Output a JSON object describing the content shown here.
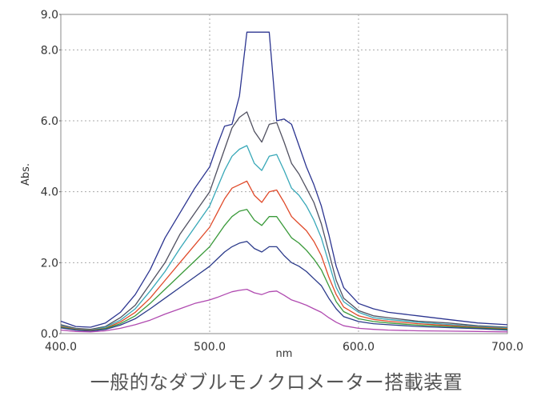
{
  "caption": "一般的なダブルモノクロメーター搭載装置",
  "chart_data": {
    "type": "line",
    "xlabel": "nm",
    "ylabel": "Abs.",
    "xlim": [
      400,
      700
    ],
    "ylim": [
      0,
      9
    ],
    "grid": true,
    "x_ticks": [
      "400.0",
      "500.0",
      "600.0",
      "700.0"
    ],
    "y_ticks": [
      "0.0",
      "2.0",
      "4.0",
      "6.0",
      "8.0",
      "9.0"
    ],
    "x_tick_values": [
      400,
      500,
      600,
      700
    ],
    "y_tick_values": [
      0,
      2,
      4,
      6,
      8,
      9
    ],
    "x": [
      400,
      410,
      420,
      430,
      440,
      450,
      460,
      470,
      480,
      490,
      500,
      505,
      510,
      515,
      520,
      525,
      530,
      535,
      540,
      545,
      550,
      555,
      560,
      565,
      570,
      575,
      580,
      585,
      590,
      600,
      610,
      620,
      640,
      660,
      680,
      700
    ],
    "series": [
      {
        "color": "#2c3590",
        "values": [
          0.35,
          0.2,
          0.18,
          0.3,
          0.6,
          1.1,
          1.8,
          2.7,
          3.4,
          4.1,
          4.7,
          5.3,
          5.85,
          5.9,
          6.7,
          8.5,
          8.5,
          8.5,
          8.5,
          6.0,
          6.05,
          5.9,
          5.3,
          4.7,
          4.2,
          3.6,
          2.8,
          1.9,
          1.3,
          0.85,
          0.7,
          0.6,
          0.5,
          0.4,
          0.3,
          0.25
        ]
      },
      {
        "color": "#505060",
        "values": [
          0.25,
          0.15,
          0.12,
          0.2,
          0.45,
          0.8,
          1.4,
          2.0,
          2.8,
          3.4,
          4.0,
          4.6,
          5.2,
          5.8,
          6.1,
          6.25,
          5.7,
          5.4,
          5.9,
          5.95,
          5.4,
          4.8,
          4.5,
          4.1,
          3.7,
          3.1,
          2.3,
          1.5,
          1.0,
          0.65,
          0.5,
          0.45,
          0.35,
          0.3,
          0.22,
          0.18
        ]
      },
      {
        "color": "#38a8b8",
        "values": [
          0.22,
          0.13,
          0.1,
          0.18,
          0.38,
          0.7,
          1.2,
          1.75,
          2.4,
          3.0,
          3.6,
          4.1,
          4.6,
          5.0,
          5.2,
          5.3,
          4.8,
          4.6,
          5.0,
          5.05,
          4.6,
          4.1,
          3.9,
          3.6,
          3.2,
          2.7,
          2.0,
          1.3,
          0.9,
          0.6,
          0.45,
          0.4,
          0.32,
          0.26,
          0.2,
          0.16
        ]
      },
      {
        "color": "#e04a2a",
        "values": [
          0.2,
          0.12,
          0.09,
          0.15,
          0.33,
          0.6,
          1.0,
          1.5,
          2.0,
          2.5,
          3.0,
          3.4,
          3.8,
          4.1,
          4.2,
          4.3,
          3.9,
          3.7,
          4.0,
          4.05,
          3.7,
          3.3,
          3.1,
          2.9,
          2.6,
          2.2,
          1.6,
          1.1,
          0.75,
          0.5,
          0.4,
          0.35,
          0.28,
          0.23,
          0.18,
          0.14
        ]
      },
      {
        "color": "#3a9a3a",
        "values": [
          0.18,
          0.11,
          0.08,
          0.14,
          0.28,
          0.5,
          0.85,
          1.25,
          1.65,
          2.05,
          2.45,
          2.75,
          3.05,
          3.3,
          3.45,
          3.5,
          3.2,
          3.05,
          3.3,
          3.3,
          3.0,
          2.7,
          2.55,
          2.35,
          2.1,
          1.8,
          1.35,
          0.9,
          0.62,
          0.42,
          0.34,
          0.3,
          0.24,
          0.2,
          0.16,
          0.12
        ]
      },
      {
        "color": "#2b3a8a",
        "values": [
          0.16,
          0.1,
          0.07,
          0.12,
          0.24,
          0.42,
          0.7,
          1.0,
          1.3,
          1.6,
          1.9,
          2.1,
          2.3,
          2.45,
          2.55,
          2.6,
          2.4,
          2.3,
          2.45,
          2.45,
          2.2,
          2.0,
          1.9,
          1.75,
          1.55,
          1.35,
          1.0,
          0.7,
          0.48,
          0.34,
          0.28,
          0.25,
          0.2,
          0.17,
          0.14,
          0.1
        ]
      },
      {
        "color": "#b04ab0",
        "values": [
          0.1,
          0.06,
          0.05,
          0.08,
          0.15,
          0.25,
          0.38,
          0.55,
          0.7,
          0.85,
          0.95,
          1.02,
          1.1,
          1.18,
          1.22,
          1.25,
          1.15,
          1.1,
          1.18,
          1.2,
          1.08,
          0.95,
          0.88,
          0.8,
          0.7,
          0.6,
          0.45,
          0.32,
          0.22,
          0.15,
          0.12,
          0.1,
          0.08,
          0.07,
          0.06,
          0.05
        ]
      }
    ]
  }
}
